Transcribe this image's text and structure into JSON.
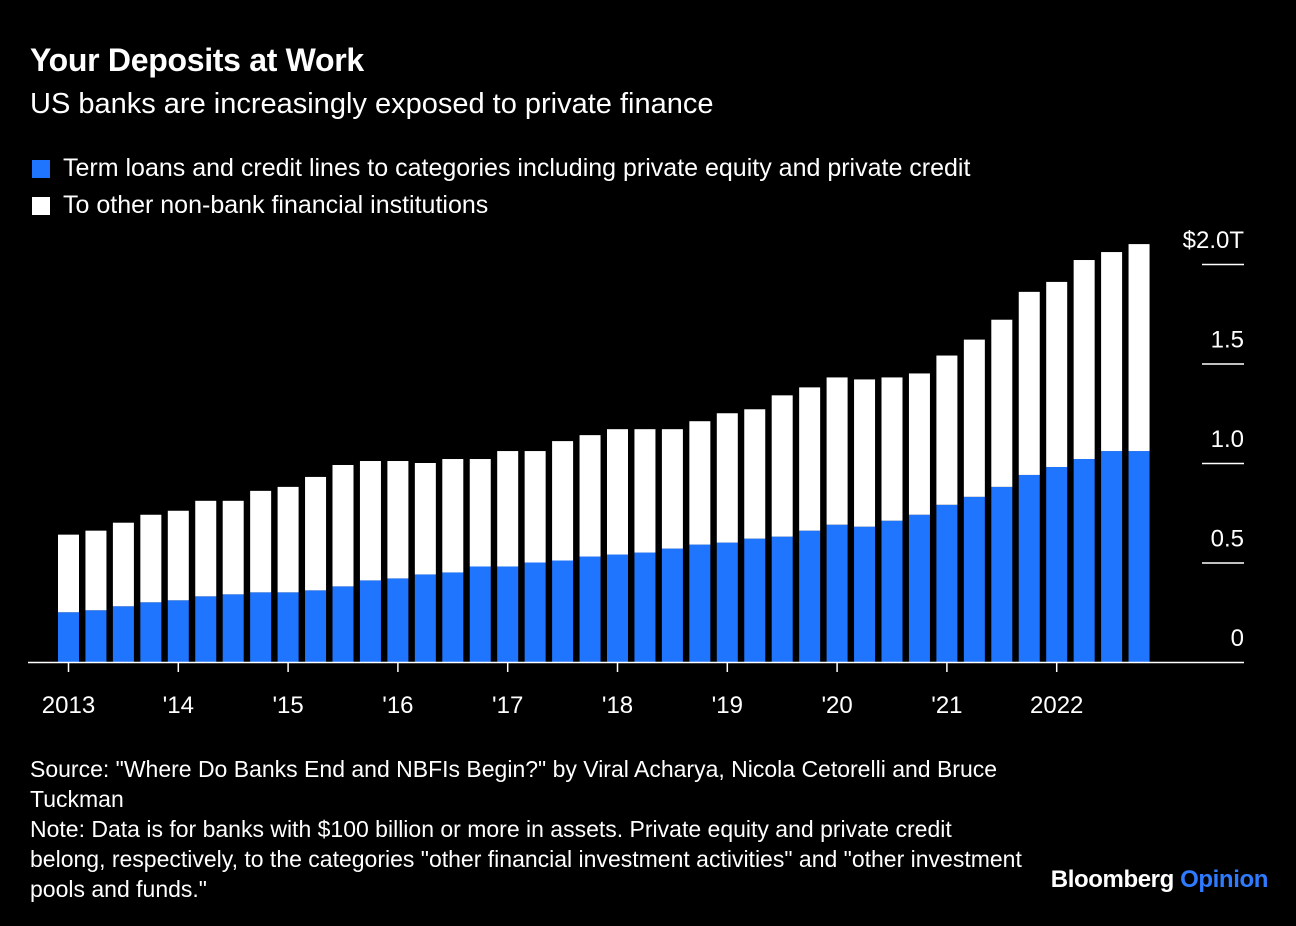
{
  "header": {
    "title": "Your Deposits at Work",
    "subtitle": "US banks are increasingly exposed to private finance"
  },
  "legend": [
    {
      "label": "Term loans and credit lines to categories including private equity and private credit",
      "color": "#1f75fe"
    },
    {
      "label": "To other non-bank financial institutions",
      "color": "#ffffff"
    }
  ],
  "footer": {
    "source": "Source: \"Where Do Banks End and NBFIs Begin?\" by Viral Acharya, Nicola Cetorelli and Bruce Tuckman",
    "note": "Note: Data is for banks with $100 billion or more in assets. Private equity and private credit belong, respectively, to the categories \"other financial investment activities\" and \"other investment pools and funds.\""
  },
  "brand": {
    "name": "Bloomberg",
    "suffix": "Opinion"
  },
  "chart_data": {
    "type": "bar",
    "stacked": true,
    "ylim": [
      0,
      2.0
    ],
    "y_ticks": [
      {
        "value": 0,
        "label": "0"
      },
      {
        "value": 0.5,
        "label": "0.5"
      },
      {
        "value": 1.0,
        "label": "1.0"
      },
      {
        "value": 1.5,
        "label": "1.5"
      },
      {
        "value": 2.0,
        "label": "$2.0T"
      }
    ],
    "x": [
      "2013 Q1",
      "2013 Q2",
      "2013 Q3",
      "2013 Q4",
      "2014 Q1",
      "2014 Q2",
      "2014 Q3",
      "2014 Q4",
      "2015 Q1",
      "2015 Q2",
      "2015 Q3",
      "2015 Q4",
      "2016 Q1",
      "2016 Q2",
      "2016 Q3",
      "2016 Q4",
      "2017 Q1",
      "2017 Q2",
      "2017 Q3",
      "2017 Q4",
      "2018 Q1",
      "2018 Q2",
      "2018 Q3",
      "2018 Q4",
      "2019 Q1",
      "2019 Q2",
      "2019 Q3",
      "2019 Q4",
      "2020 Q1",
      "2020 Q2",
      "2020 Q3",
      "2020 Q4",
      "2021 Q1",
      "2021 Q2",
      "2021 Q3",
      "2021 Q4",
      "2022 Q1",
      "2022 Q2",
      "2022 Q3",
      "2022 Q4"
    ],
    "x_tick_labels": [
      {
        "index": 0,
        "label": "2013"
      },
      {
        "index": 4,
        "label": "'14"
      },
      {
        "index": 8,
        "label": "'15"
      },
      {
        "index": 12,
        "label": "'16"
      },
      {
        "index": 16,
        "label": "'17"
      },
      {
        "index": 20,
        "label": "'18"
      },
      {
        "index": 24,
        "label": "'19"
      },
      {
        "index": 28,
        "label": "'20"
      },
      {
        "index": 32,
        "label": "'21"
      },
      {
        "index": 36,
        "label": "2022"
      }
    ],
    "series": [
      {
        "name": "Term loans and credit lines to categories including private equity and private credit",
        "color": "#1f75fe",
        "values": [
          0.25,
          0.26,
          0.28,
          0.3,
          0.31,
          0.33,
          0.34,
          0.35,
          0.35,
          0.36,
          0.38,
          0.41,
          0.42,
          0.44,
          0.45,
          0.48,
          0.48,
          0.5,
          0.51,
          0.53,
          0.54,
          0.55,
          0.57,
          0.59,
          0.6,
          0.62,
          0.63,
          0.66,
          0.69,
          0.68,
          0.71,
          0.74,
          0.79,
          0.83,
          0.88,
          0.94,
          0.98,
          1.02,
          1.06,
          1.06
        ]
      },
      {
        "name": "To other non-bank financial institutions",
        "color": "#ffffff",
        "values": [
          0.39,
          0.4,
          0.42,
          0.44,
          0.45,
          0.48,
          0.47,
          0.51,
          0.53,
          0.57,
          0.61,
          0.6,
          0.59,
          0.56,
          0.57,
          0.54,
          0.58,
          0.56,
          0.6,
          0.61,
          0.63,
          0.62,
          0.6,
          0.62,
          0.65,
          0.65,
          0.71,
          0.72,
          0.74,
          0.74,
          0.72,
          0.71,
          0.75,
          0.79,
          0.84,
          0.92,
          0.93,
          1.0,
          1.0,
          1.04
        ]
      }
    ]
  }
}
